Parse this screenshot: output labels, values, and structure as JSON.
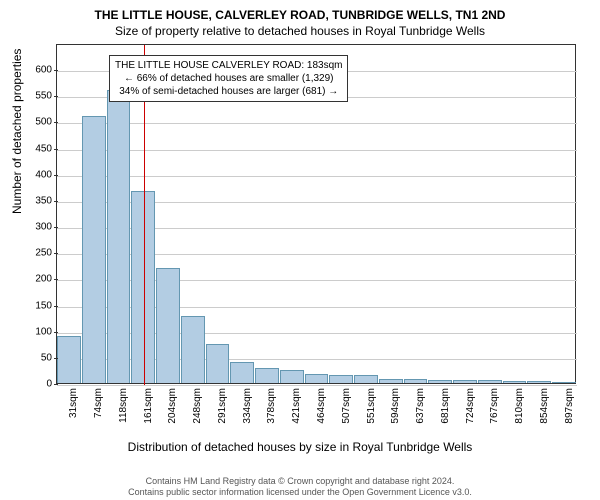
{
  "title": "THE LITTLE HOUSE, CALVERLEY ROAD, TUNBRIDGE WELLS, TN1 2ND",
  "subtitle": "Size of property relative to detached houses in Royal Tunbridge Wells",
  "chart": {
    "type": "histogram",
    "ylabel": "Number of detached properties",
    "xlabel": "Distribution of detached houses by size in Royal Tunbridge Wells",
    "ylim": [
      0,
      650
    ],
    "yticks": [
      0,
      50,
      100,
      150,
      200,
      250,
      300,
      350,
      400,
      450,
      500,
      550,
      600
    ],
    "categories": [
      "31sqm",
      "74sqm",
      "118sqm",
      "161sqm",
      "204sqm",
      "248sqm",
      "291sqm",
      "334sqm",
      "378sqm",
      "421sqm",
      "464sqm",
      "507sqm",
      "551sqm",
      "594sqm",
      "637sqm",
      "681sqm",
      "724sqm",
      "767sqm",
      "810sqm",
      "854sqm",
      "897sqm"
    ],
    "values": [
      90,
      510,
      560,
      368,
      220,
      128,
      75,
      40,
      28,
      25,
      18,
      15,
      15,
      8,
      7,
      5,
      5,
      5,
      3,
      3,
      2
    ],
    "bar_color": "#b3cde3",
    "bar_border": "#6497b1",
    "grid_color": "#cccccc",
    "axis_color": "#333333",
    "background_color": "#ffffff",
    "marker_color": "#cc0000",
    "marker_position": 3,
    "annotation": {
      "line1": "THE LITTLE HOUSE CALVERLEY ROAD: 183sqm",
      "line2": "← 66% of detached houses are smaller (1,329)",
      "line3": "34% of semi-detached houses are larger (681) →"
    },
    "title_fontsize": 12,
    "label_fontsize": 12,
    "tick_fontsize": 10
  },
  "footer": {
    "line1": "Contains HM Land Registry data © Crown copyright and database right 2024.",
    "line2": "Contains public sector information licensed under the Open Government Licence v3.0."
  }
}
